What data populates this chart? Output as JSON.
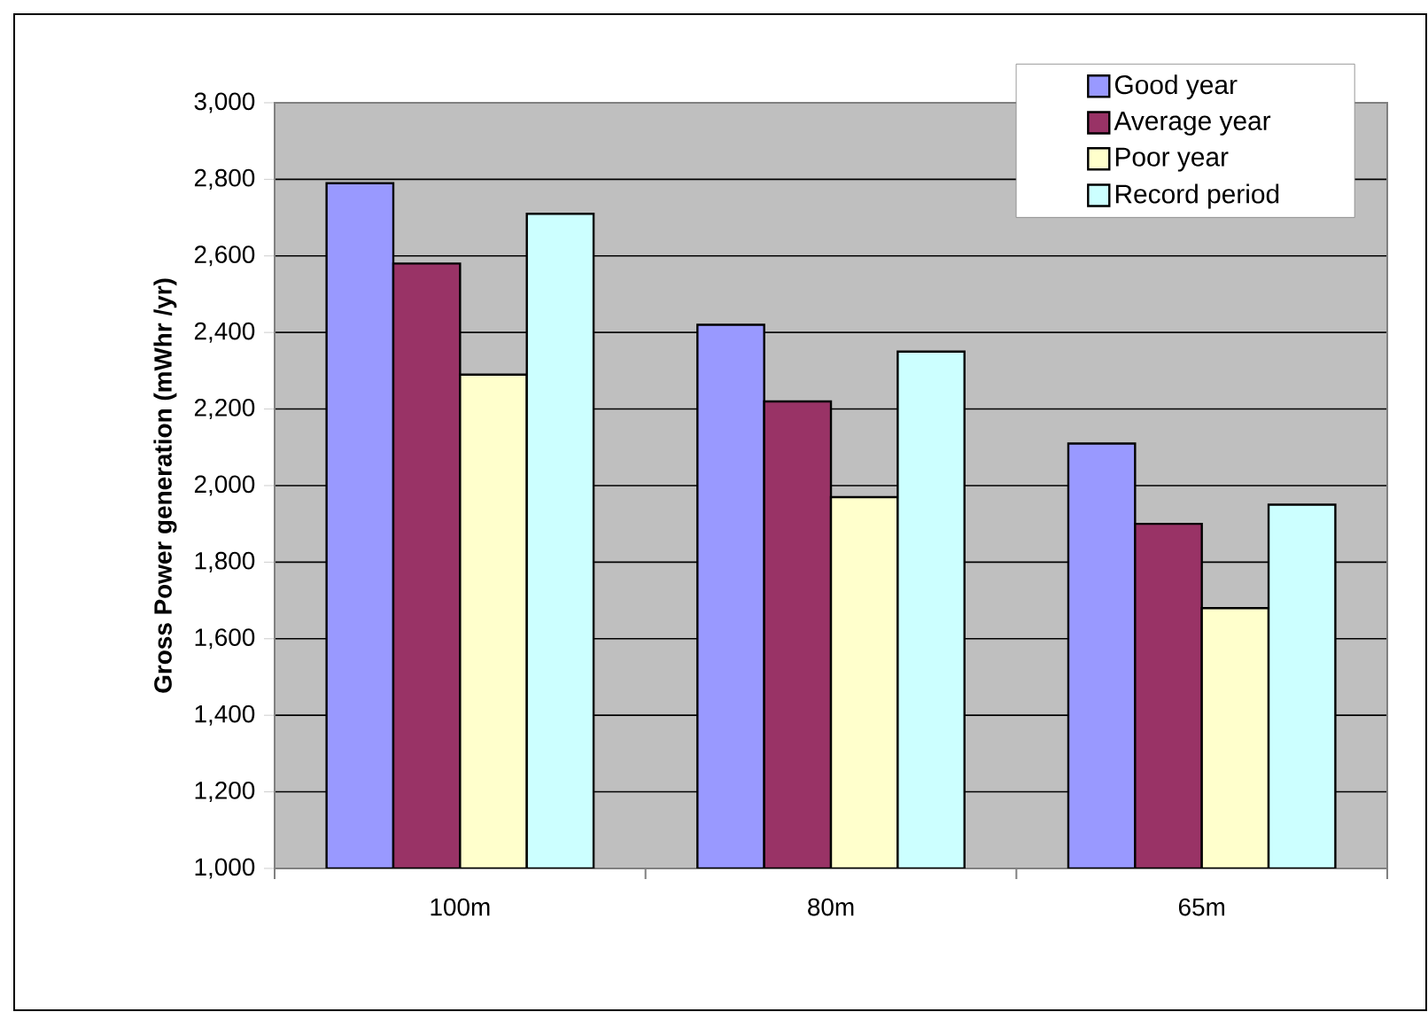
{
  "chart_data": {
    "type": "bar",
    "ylabel": "Gross Power generation (mWhr /yr)",
    "categories": [
      "100m",
      "80m",
      "65m"
    ],
    "series": [
      {
        "name": "Good year",
        "color": "#9999ff",
        "values": [
          2790,
          2420,
          2110
        ]
      },
      {
        "name": "Average year",
        "color": "#993366",
        "values": [
          2580,
          2220,
          1900
        ]
      },
      {
        "name": "Poor year",
        "color": "#ffffcc",
        "values": [
          2290,
          1970,
          1680
        ]
      },
      {
        "name": "Record period",
        "color": "#ccffff",
        "values": [
          2710,
          2350,
          1950
        ]
      }
    ],
    "ylim": [
      1000,
      3000
    ],
    "yticks": [
      {
        "value": 1000,
        "label": "1,000"
      },
      {
        "value": 1200,
        "label": "1,200"
      },
      {
        "value": 1400,
        "label": "1,400"
      },
      {
        "value": 1600,
        "label": "1,600"
      },
      {
        "value": 1800,
        "label": "1,800"
      },
      {
        "value": 2000,
        "label": "2,000"
      },
      {
        "value": 2200,
        "label": "2,200"
      },
      {
        "value": 2400,
        "label": "2,400"
      },
      {
        "value": 2600,
        "label": "2,600"
      },
      {
        "value": 2800,
        "label": "2,800"
      },
      {
        "value": 3000,
        "label": "3,000"
      }
    ],
    "grid": "y",
    "legend": "top right"
  }
}
